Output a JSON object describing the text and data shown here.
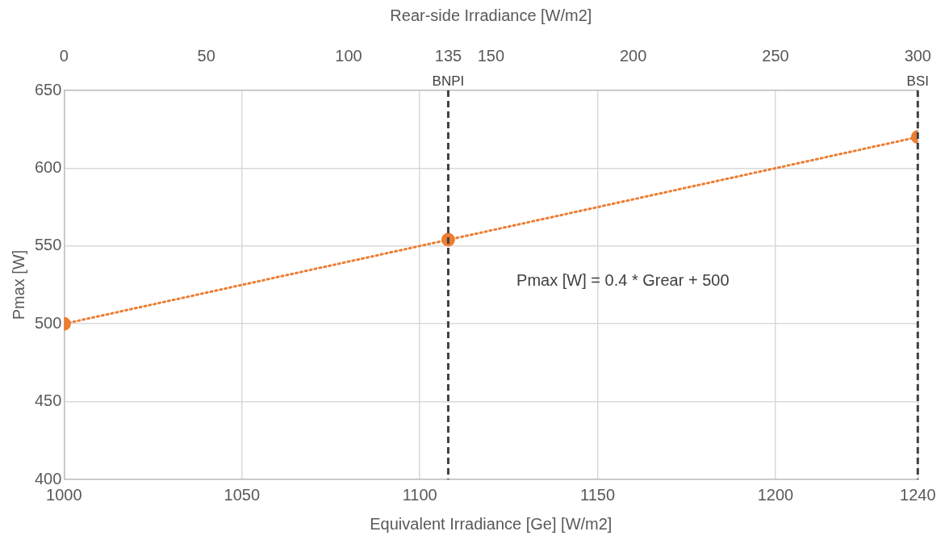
{
  "chart_data": {
    "type": "scatter",
    "xlabel": "Equivalent Irradiance [Ge] [W/m2]",
    "ylabel": "Pmax [W]",
    "x2label": "Rear-side Irradiance [W/m2]",
    "xlim": [
      1000,
      1240
    ],
    "xticks": [
      1000,
      1050,
      1100,
      1150,
      1200,
      1240
    ],
    "x2lim": [
      0,
      300
    ],
    "x2ticks": [
      0,
      50,
      100,
      135,
      150,
      200,
      250,
      300
    ],
    "ylim": [
      400,
      650
    ],
    "yticks": [
      400,
      450,
      500,
      550,
      600,
      650
    ],
    "grid": true,
    "legend": false,
    "marker": "circle",
    "series": [
      {
        "color": "#ed7d31",
        "x": [
          1000,
          1108,
          1240
        ],
        "values": [
          500,
          554,
          620
        ]
      },
      {
        "type": "line",
        "color": "#ed7d31",
        "line_style": "dotted",
        "marker": "none",
        "x": [
          1000,
          1240
        ],
        "values": [
          500,
          620
        ]
      }
    ],
    "ref_lines": [
      {
        "axis": "x",
        "value": 1108,
        "label": "BNPI",
        "color": "#404040",
        "line_style": "dashed"
      },
      {
        "axis": "x",
        "value": 1240,
        "label": "BSI",
        "color": "#404040",
        "line_style": "dashed"
      }
    ],
    "annotations": [
      "Pmax [W] = 0.4 * Grear + 500"
    ]
  }
}
